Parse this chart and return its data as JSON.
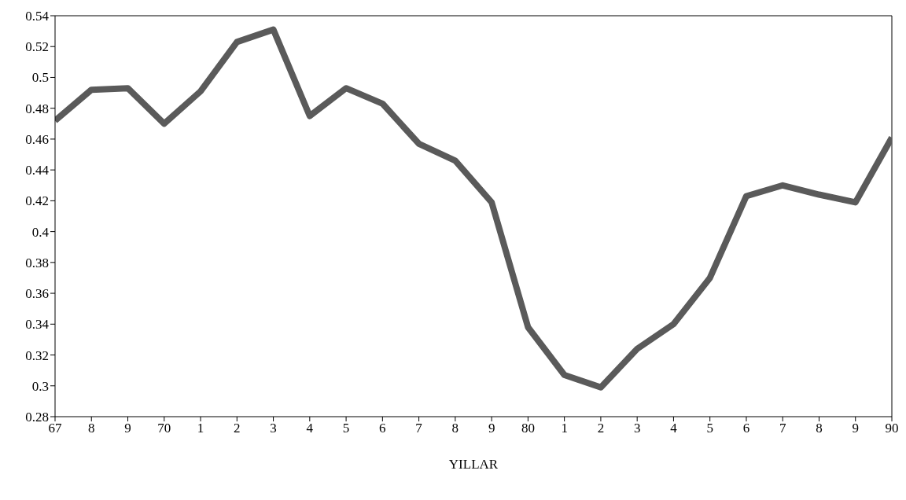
{
  "chart_data": {
    "type": "line",
    "xlabel": "YILLAR",
    "categories": [
      "67",
      "8",
      "9",
      "70",
      "1",
      "2",
      "3",
      "4",
      "5",
      "6",
      "7",
      "8",
      "9",
      "80",
      "1",
      "2",
      "3",
      "4",
      "5",
      "6",
      "7",
      "8",
      "9",
      "90"
    ],
    "series": [
      {
        "color": "#5a5a5a",
        "values": [
          0.472,
          0.492,
          0.493,
          0.47,
          0.491,
          0.523,
          0.531,
          0.475,
          0.493,
          0.483,
          0.457,
          0.446,
          0.419,
          0.338,
          0.307,
          0.299,
          0.324,
          0.34,
          0.37,
          0.423,
          0.43,
          0.424,
          0.419,
          0.461
        ]
      }
    ],
    "ylim": [
      0.28,
      0.54
    ],
    "yticks": [
      0.28,
      0.3,
      0.32,
      0.34,
      0.36,
      0.38,
      0.4,
      0.42,
      0.44,
      0.46,
      0.48,
      0.5,
      0.52,
      0.54
    ],
    "grid": false,
    "legend": false,
    "marker": "none",
    "line_style": "solid"
  }
}
